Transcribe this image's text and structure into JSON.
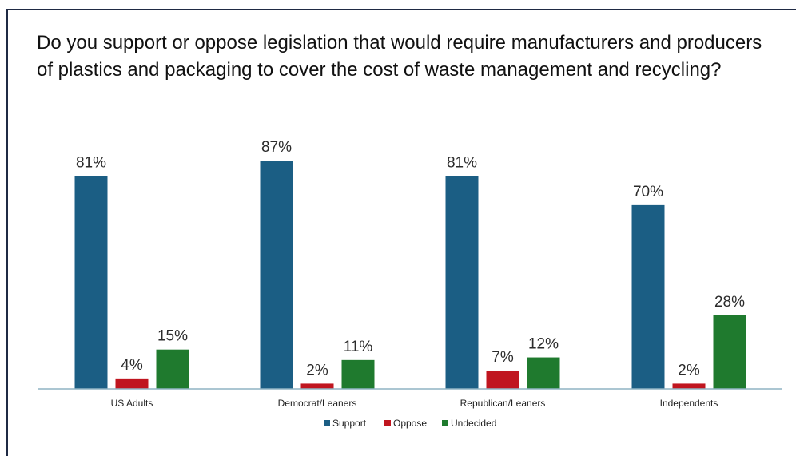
{
  "chart_data": {
    "type": "bar",
    "title": "Do you support or oppose legislation that would require manufacturers and producers of plastics and packaging to cover the cost of waste management and recycling?",
    "categories": [
      "US Adults",
      "Democrat/Leaners",
      "Republican/Leaners",
      "Independents"
    ],
    "series": [
      {
        "name": "Support",
        "values": [
          81,
          87,
          81,
          70
        ],
        "labels": [
          "81%",
          "87%",
          "81%",
          "70%"
        ],
        "color": "#1b5e84"
      },
      {
        "name": "Oppose",
        "values": [
          4,
          2,
          7,
          2
        ],
        "labels": [
          "4%",
          "2%",
          "7%",
          "2%"
        ],
        "color": "#c0151f"
      },
      {
        "name": "Undecided",
        "values": [
          15,
          11,
          12,
          28
        ],
        "labels": [
          "15%",
          "11%",
          "12%",
          "28%"
        ],
        "color": "#1f7a2e"
      }
    ],
    "ylim": [
      0,
      100
    ],
    "grid": false,
    "legend_position": "bottom",
    "axis_color": "#8fb4c3"
  }
}
